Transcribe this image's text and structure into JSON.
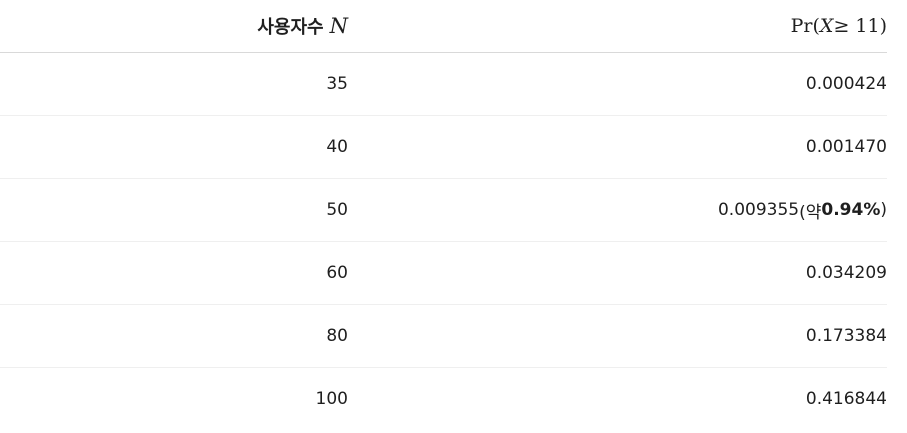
{
  "header": {
    "n_label": "사용자수",
    "n_symbol": "N",
    "p_func": "Pr(",
    "p_var": "X",
    "p_op": " ≥ 11)"
  },
  "rows": [
    {
      "n": "35",
      "p": "0.000424"
    },
    {
      "n": "40",
      "p": "0.001470"
    },
    {
      "n": "50",
      "p": "0.009355",
      "note_open": " (약 ",
      "note_value": "0.94%",
      "note_close": ")"
    },
    {
      "n": "60",
      "p": "0.034209"
    },
    {
      "n": "80",
      "p": "0.173384"
    },
    {
      "n": "100",
      "p": "0.416844"
    }
  ]
}
